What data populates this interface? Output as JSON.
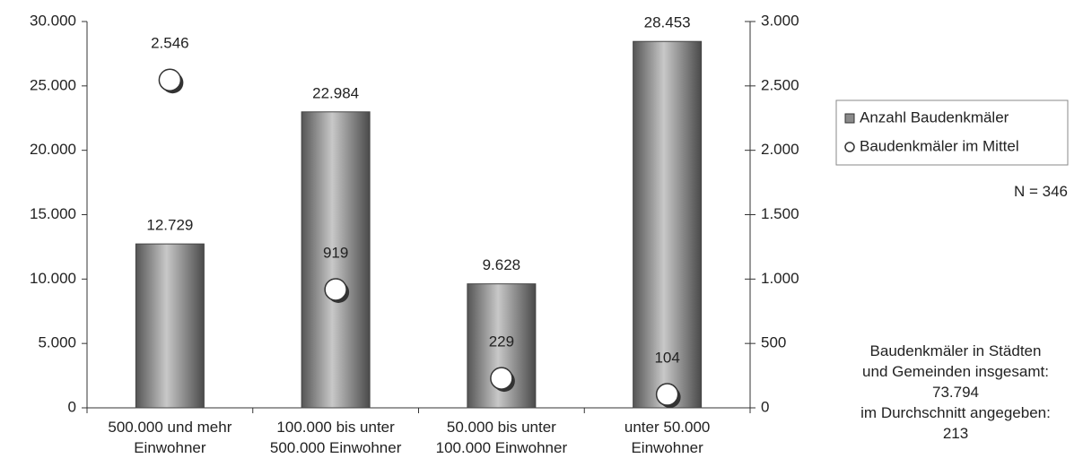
{
  "chart_data": {
    "type": "bar",
    "categories": [
      "500.000 und mehr\nEinwohner",
      "100.000 bis unter\n500.000 Einwohner",
      "50.000 bis unter\n100.000 Einwohner",
      "unter 50.000\nEinwohner"
    ],
    "series": [
      {
        "name": "Anzahl Baudenkmäler",
        "color": "#8a8a8a",
        "type": "bar",
        "values": [
          12729,
          22984,
          9628,
          28453
        ],
        "value_labels": [
          "12.729",
          "22.984",
          "9.628",
          "28.453"
        ]
      },
      {
        "name": "Baudenkmäler im Mittel",
        "color": "#ffffff",
        "type": "scatter",
        "axis": "y2",
        "values": [
          2546,
          919,
          229,
          104
        ],
        "value_labels": [
          "2.546",
          "919",
          "229",
          "104"
        ]
      }
    ],
    "ylim": [
      0,
      30000
    ],
    "yticks": [
      0,
      {
        "value": 5000,
        "label": "5.000"
      },
      {
        "value": 10000,
        "label": "10.000"
      },
      {
        "value": 15000,
        "label": "15.000"
      },
      {
        "value": 20000,
        "label": "20.000"
      },
      {
        "value": 25000,
        "label": "25.000"
      },
      {
        "value": 30000,
        "label": "30.000"
      }
    ],
    "y2lim": [
      0,
      3000
    ],
    "y2ticks": [
      0,
      500,
      {
        "value": 1000,
        "label": "1.000"
      },
      {
        "value": 1500,
        "label": "1.500"
      },
      {
        "value": 2000,
        "label": "2.000"
      },
      {
        "value": 2500,
        "label": "2.500"
      },
      {
        "value": 3000,
        "label": "3.000"
      }
    ],
    "annotations": [
      "N = 346",
      "Baudenkmäler in Städten\nund Gemeinden insgesamt:\n73.794\nim Durchschnitt angegeben:\n213"
    ],
    "legend": "right"
  }
}
